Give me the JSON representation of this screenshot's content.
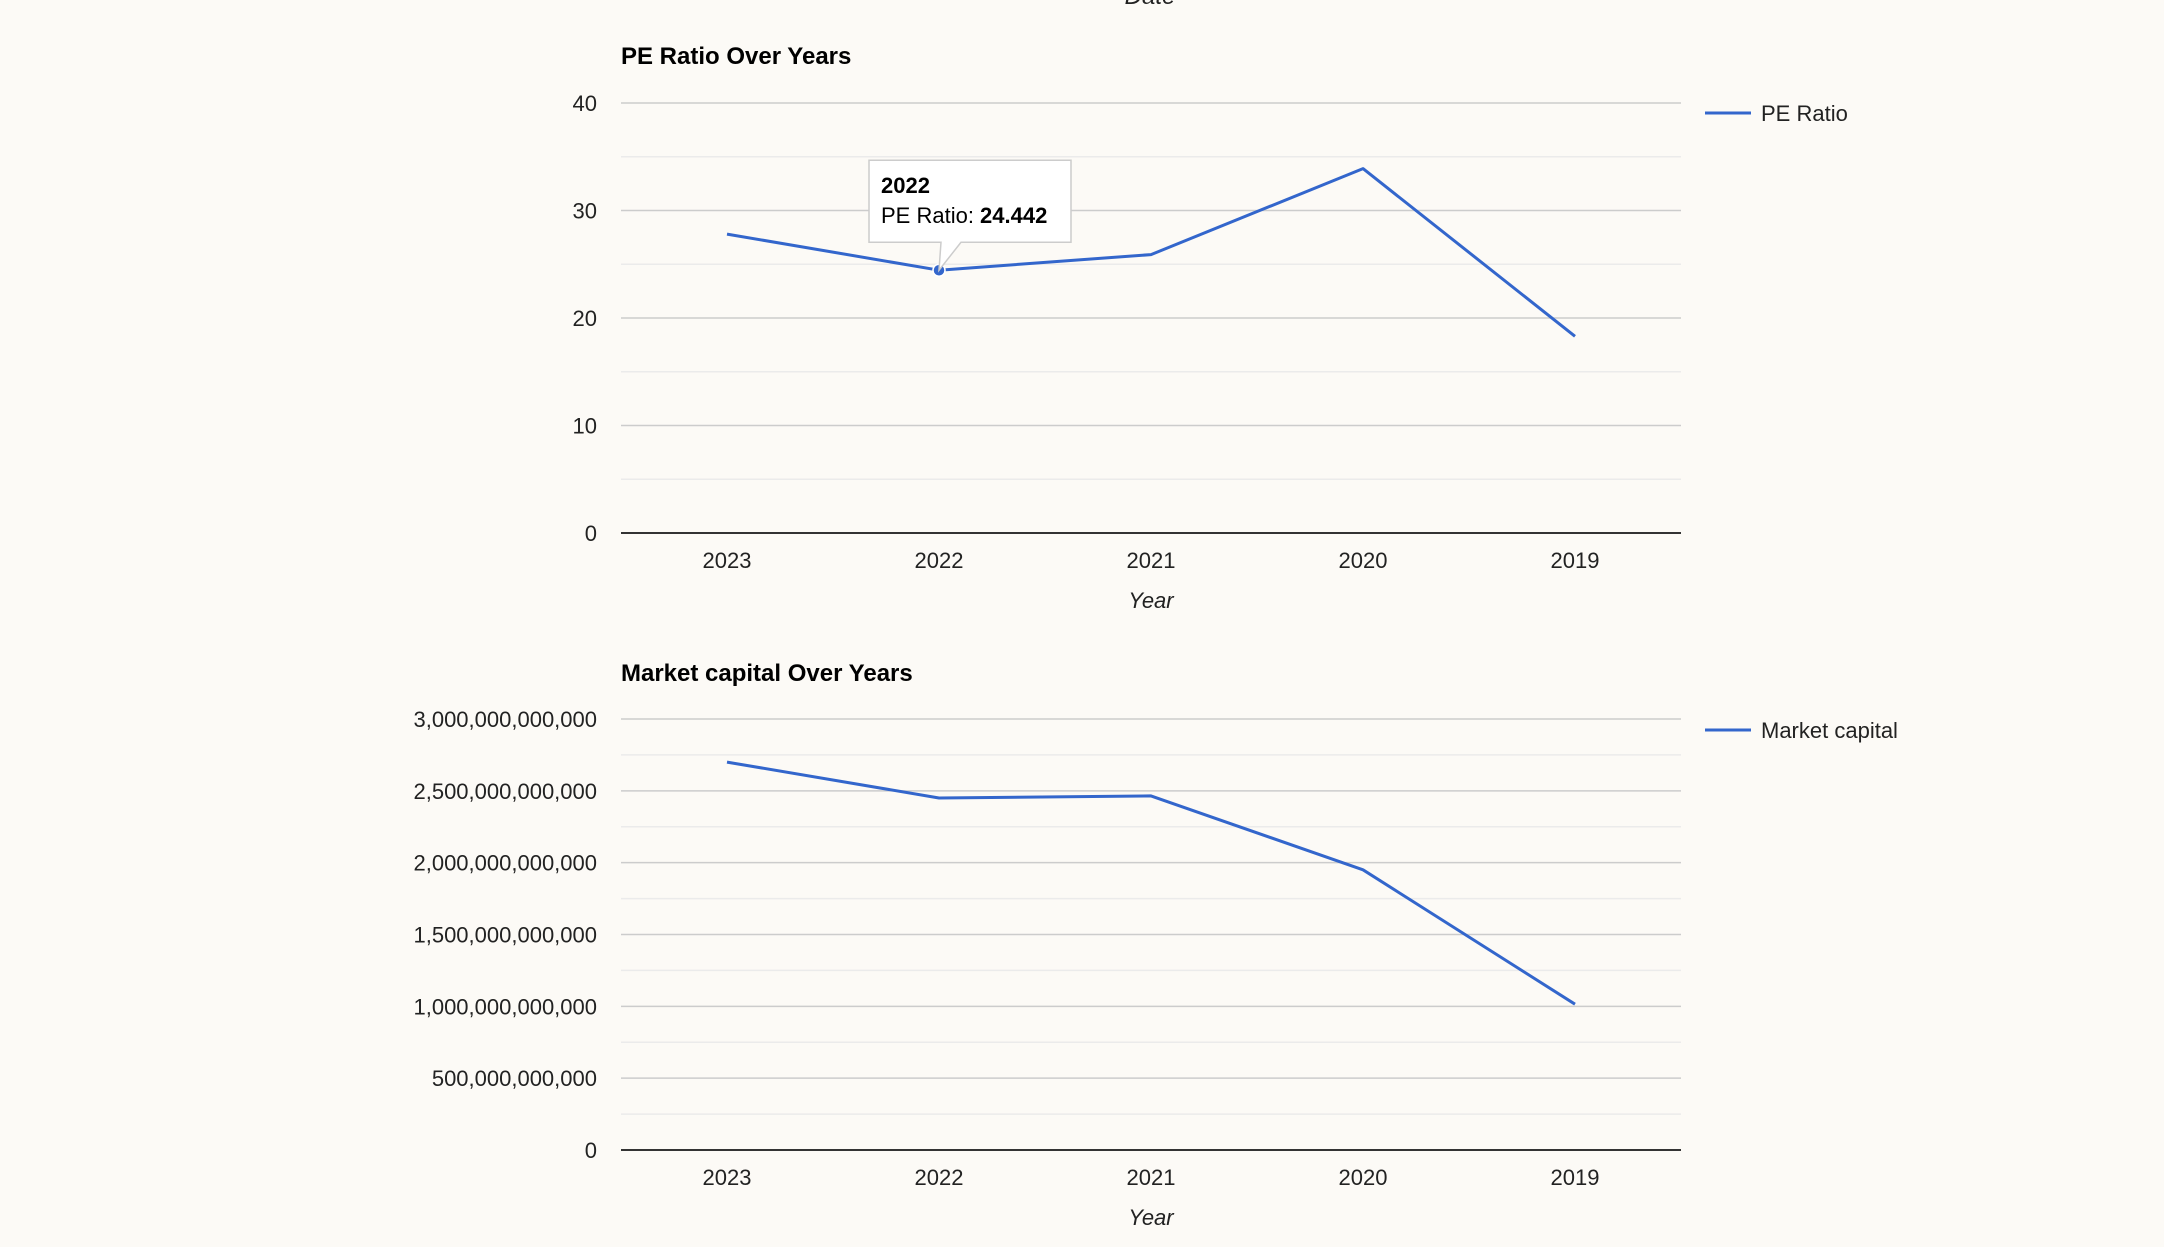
{
  "top_partial_label": "Date",
  "colors": {
    "background": "#fcfaf6",
    "line": "#3366cc",
    "gridline": "#cccccc",
    "minor_gridline": "#ebebeb",
    "baseline": "#333333",
    "text": "#222222"
  },
  "tooltip": {
    "title": "2022",
    "label": "PE Ratio:",
    "value": "24.442"
  },
  "chart_data": [
    {
      "type": "line",
      "title": "PE Ratio Over Years",
      "xlabel": "Year",
      "ylabel": "",
      "categories": [
        "2023",
        "2022",
        "2021",
        "2020",
        "2019"
      ],
      "series": [
        {
          "name": "PE Ratio",
          "values": [
            27.8,
            24.442,
            25.9,
            33.9,
            18.3
          ]
        }
      ],
      "ylim": [
        0,
        40
      ],
      "yticks": [
        "0",
        "10",
        "20",
        "30",
        "40"
      ],
      "grid": true,
      "legend": "right",
      "highlighted_point": {
        "category": "2022",
        "value": 24.442
      }
    },
    {
      "type": "line",
      "title": "Market capital Over Years",
      "xlabel": "Year",
      "ylabel": "",
      "categories": [
        "2023",
        "2022",
        "2021",
        "2020",
        "2019"
      ],
      "series": [
        {
          "name": "Market capital",
          "values": [
            2700000000000,
            2450000000000,
            2465000000000,
            1950000000000,
            1015000000000
          ]
        }
      ],
      "ylim": [
        0,
        3000000000000
      ],
      "yticks": [
        "0",
        "500,000,000,000",
        "1,000,000,000,000",
        "1,500,000,000,000",
        "2,000,000,000,000",
        "2,500,000,000,000",
        "3,000,000,000,000"
      ],
      "grid": true,
      "legend": "right"
    }
  ]
}
